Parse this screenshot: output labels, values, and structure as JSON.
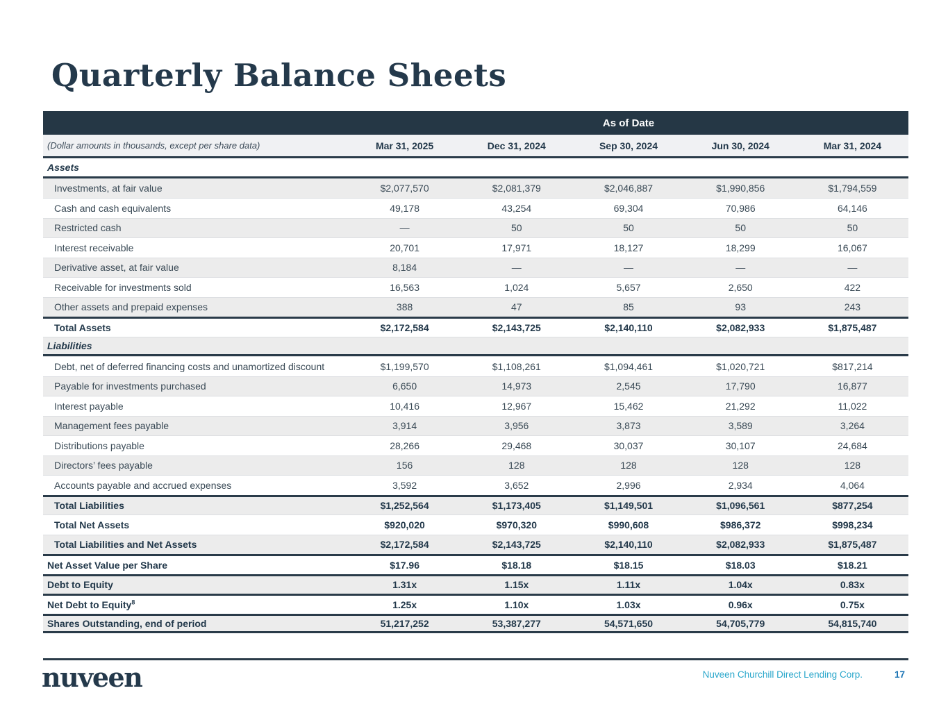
{
  "slide": {
    "title": "Quarterly Balance Sheets"
  },
  "colors": {
    "navy_banner": "#253745",
    "heavy_rule": "#2a3b49",
    "stripe_gray": "#ececec",
    "body_text": "#394955",
    "footer_company": "#2ba7cb",
    "footer_page": "#1b74b4"
  },
  "table": {
    "banner": "As of Date",
    "note": "(Dollar amounts in thousands, except per share data)",
    "columns": [
      "Mar 31, 2025",
      "Dec 31, 2024",
      "Sep 30, 2024",
      "Jun 30, 2024",
      "Mar 31, 2024"
    ],
    "rows": [
      {
        "label": "Assets",
        "type": "section",
        "shade": "white",
        "rule_bottom": true,
        "values": []
      },
      {
        "label": "Investments, at fair value",
        "type": "data",
        "shade": "gray",
        "values": [
          "$2,077,570",
          "$2,081,379",
          "$2,046,887",
          "$1,990,856",
          "$1,794,559"
        ]
      },
      {
        "label": "Cash and cash equivalents",
        "type": "data",
        "shade": "white",
        "values": [
          "49,178",
          "43,254",
          "69,304",
          "70,986",
          "64,146"
        ]
      },
      {
        "label": "Restricted cash",
        "type": "data",
        "shade": "gray",
        "values": [
          "—",
          "50",
          "50",
          "50",
          "50"
        ]
      },
      {
        "label": "Interest receivable",
        "type": "data",
        "shade": "white",
        "values": [
          "20,701",
          "17,971",
          "18,127",
          "18,299",
          "16,067"
        ]
      },
      {
        "label": "Derivative asset, at fair value",
        "type": "data",
        "shade": "gray",
        "values": [
          "8,184",
          "—",
          "—",
          "—",
          "—"
        ]
      },
      {
        "label": "Receivable for investments sold",
        "type": "data",
        "shade": "white",
        "values": [
          "16,563",
          "1,024",
          "5,657",
          "2,650",
          "422"
        ]
      },
      {
        "label": "Other assets and prepaid expenses",
        "type": "data",
        "shade": "gray",
        "values": [
          "388",
          "47",
          "85",
          "93",
          "243"
        ]
      },
      {
        "label": "Total Assets",
        "type": "total",
        "shade": "white",
        "rule_top": true,
        "values": [
          "$2,172,584",
          "$2,143,725",
          "$2,140,110",
          "$2,082,933",
          "$1,875,487"
        ]
      },
      {
        "label": "Liabilities",
        "type": "section",
        "shade": "gray",
        "rule_bottom": true,
        "values": []
      },
      {
        "label": "Debt, net of deferred financing costs and unamortized discount",
        "type": "data",
        "shade": "white",
        "values": [
          "$1,199,570",
          "$1,108,261",
          "$1,094,461",
          "$1,020,721",
          "$817,214"
        ]
      },
      {
        "label": "Payable for investments purchased",
        "type": "data",
        "shade": "gray",
        "values": [
          "6,650",
          "14,973",
          "2,545",
          "17,790",
          "16,877"
        ]
      },
      {
        "label": "Interest payable",
        "type": "data",
        "shade": "white",
        "values": [
          "10,416",
          "12,967",
          "15,462",
          "21,292",
          "11,022"
        ]
      },
      {
        "label": "Management fees payable",
        "type": "data",
        "shade": "gray",
        "values": [
          "3,914",
          "3,956",
          "3,873",
          "3,589",
          "3,264"
        ]
      },
      {
        "label": "Distributions payable",
        "type": "data",
        "shade": "white",
        "values": [
          "28,266",
          "29,468",
          "30,037",
          "30,107",
          "24,684"
        ]
      },
      {
        "label": "Directors’ fees payable",
        "type": "data",
        "shade": "gray",
        "values": [
          "156",
          "128",
          "128",
          "128",
          "128"
        ]
      },
      {
        "label": "Accounts payable and accrued expenses",
        "type": "data",
        "shade": "white",
        "values": [
          "3,592",
          "3,652",
          "2,996",
          "2,934",
          "4,064"
        ]
      },
      {
        "label": "Total Liabilities",
        "type": "total",
        "shade": "gray",
        "rule_top": true,
        "values": [
          "$1,252,564",
          "$1,173,405",
          "$1,149,501",
          "$1,096,561",
          "$877,254"
        ]
      },
      {
        "label": "Total Net Assets",
        "type": "total",
        "shade": "white",
        "values": [
          "$920,020",
          "$970,320",
          "$990,608",
          "$986,372",
          "$998,234"
        ]
      },
      {
        "label": "Total Liabilities and Net Assets",
        "type": "total",
        "shade": "gray",
        "values": [
          "$2,172,584",
          "$2,143,725",
          "$2,140,110",
          "$2,082,933",
          "$1,875,487"
        ]
      },
      {
        "label": "Net Asset Value per Share",
        "type": "metric",
        "shade": "white",
        "rule_top": true,
        "values": [
          "$17.96",
          "$18.18",
          "$18.15",
          "$18.03",
          "$18.21"
        ]
      },
      {
        "label": "Debt to Equity",
        "type": "metric",
        "shade": "gray",
        "rule_top": true,
        "values": [
          "1.31x",
          "1.15x",
          "1.11x",
          "1.04x",
          "0.83x"
        ]
      },
      {
        "label": "Net Debt to Equity",
        "sup": "8",
        "type": "metric",
        "shade": "white",
        "rule_top": true,
        "values": [
          "1.25x",
          "1.10x",
          "1.03x",
          "0.96x",
          "0.75x"
        ]
      },
      {
        "label": "Shares Outstanding, end of period",
        "type": "metric",
        "shade": "gray",
        "rule_top": true,
        "rule_bottom": true,
        "values": [
          "51,217,252",
          "53,387,277",
          "54,571,650",
          "54,705,779",
          "54,815,740"
        ]
      }
    ]
  },
  "footer": {
    "logo_text": "nuveen",
    "company": "Nuveen Churchill Direct Lending Corp.",
    "page_number": "17"
  }
}
